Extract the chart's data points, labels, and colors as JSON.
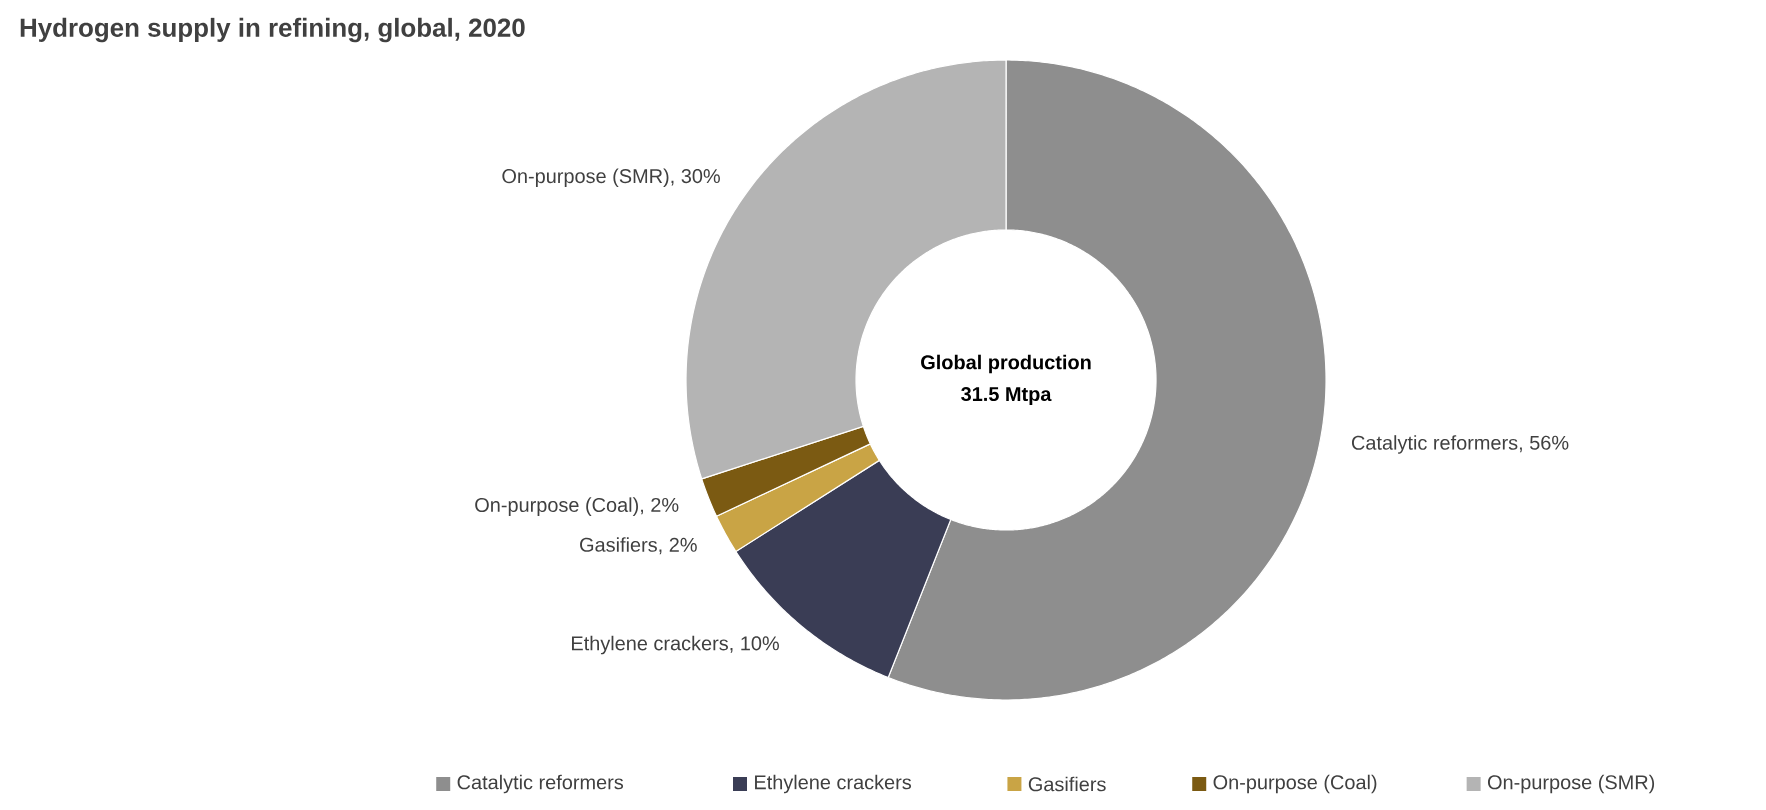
{
  "chart_data": {
    "type": "donut",
    "title": "Hydrogen supply in refining, global, 2020",
    "categories": [
      "Catalytic reformers",
      "Ethylene crackers",
      "Gasifiers",
      "On-purpose (Coal)",
      "On-purpose (SMR)"
    ],
    "values": [
      56,
      10,
      2,
      2,
      30
    ],
    "value_labels": [
      "Catalytic reformers, 56%",
      "Ethylene crackers, 10%",
      "Gasifiers, 2%",
      "On-purpose (Coal), 2%",
      "On-purpose (SMR), 30%"
    ],
    "colors": [
      "#8e8e8e",
      "#3a3d55",
      "#c9a445",
      "#7b5a12",
      "#b4b4b4"
    ],
    "annotations": [
      "Global production",
      "31.5 Mtpa"
    ],
    "legend": "bottom"
  }
}
